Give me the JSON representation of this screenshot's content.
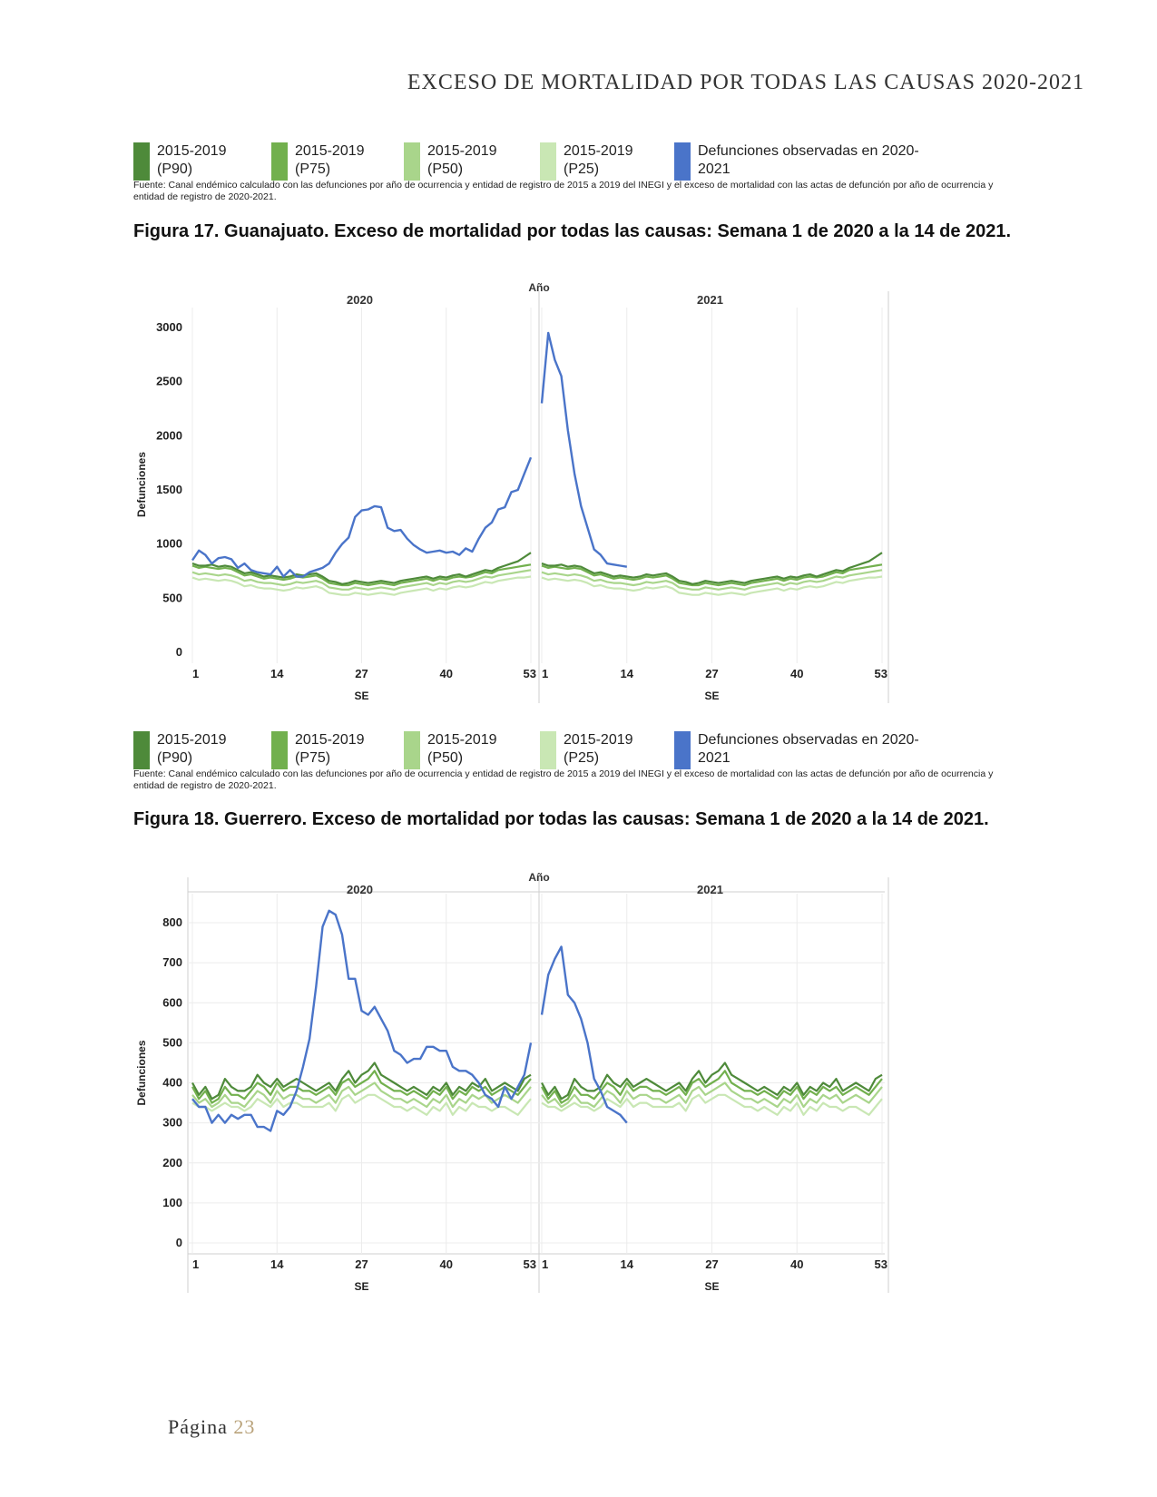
{
  "header": {
    "title": "EXCESO DE MORTALIDAD POR TODAS LAS CAUSAS 2020-2021"
  },
  "legend": {
    "items": [
      {
        "label": "2015-2019\n(P90)",
        "color": "#4e8a3a"
      },
      {
        "label": "2015-2019\n(P75)",
        "color": "#72b04e"
      },
      {
        "label": "2015-2019\n(P50)",
        "color": "#a9d58b"
      },
      {
        "label": "2015-2019\n(P25)",
        "color": "#c9e7b4"
      },
      {
        "label": "Defunciones observadas en 2020-\n2021",
        "color": "#4a74c9"
      }
    ]
  },
  "source_note": "Fuente: Canal endémico calculado con las defunciones por año de ocurrencia y entidad de registro de 2015 a 2019 del INEGI y el exceso de mortalidad con las actas de defunción por año de ocurrencia y entidad de registro de 2020-2021.",
  "figures": [
    {
      "title": "Figura 17. Guanajuato. Exceso de mortalidad por todas las causas: Semana 1 de 2020 a la 14 de 2021."
    },
    {
      "title": "Figura 18. Guerrero. Exceso de mortalidad por todas las causas: Semana 1 de 2020 a la 14 de 2021."
    }
  ],
  "footer": {
    "label": "Página",
    "page": "23"
  },
  "chart_data": [
    {
      "type": "line",
      "title": "Figura 17. Guanajuato. Exceso de mortalidad por todas las causas: Semana 1 de 2020 a la 14 de 2021.",
      "top_label": "Año",
      "panels": [
        "2020",
        "2021"
      ],
      "xlabel": "SE",
      "ylabel": "Defunciones",
      "yticks": [
        0,
        500,
        1000,
        1500,
        2000,
        2500,
        3000
      ],
      "ylim": [
        0,
        3100
      ],
      "xticks": [
        1,
        14,
        27,
        40,
        53
      ],
      "xlim": [
        1,
        53
      ],
      "grid": "vertical",
      "baseline_by_week": {
        "P90": [
          820,
          800,
          800,
          810,
          790,
          800,
          790,
          760,
          730,
          740,
          720,
          700,
          710,
          700,
          690,
          700,
          720,
          710,
          720,
          730,
          700,
          660,
          650,
          630,
          640,
          660,
          650,
          640,
          650,
          660,
          650,
          640,
          660,
          670,
          680,
          690,
          700,
          680,
          700,
          690,
          710,
          720,
          700,
          720,
          740,
          760,
          750,
          780,
          800,
          820,
          840,
          880,
          920
        ],
        "P75": [
          800,
          780,
          790,
          780,
          770,
          780,
          770,
          740,
          710,
          720,
          700,
          680,
          690,
          680,
          670,
          680,
          700,
          690,
          700,
          710,
          680,
          640,
          630,
          620,
          620,
          640,
          630,
          620,
          630,
          640,
          630,
          620,
          640,
          650,
          660,
          670,
          680,
          660,
          680,
          670,
          690,
          700,
          690,
          700,
          720,
          740,
          730,
          760,
          770,
          780,
          790,
          800,
          810
        ],
        "P50": [
          740,
          720,
          730,
          720,
          710,
          720,
          710,
          690,
          660,
          670,
          650,
          640,
          640,
          630,
          620,
          630,
          650,
          640,
          650,
          660,
          640,
          600,
          590,
          580,
          580,
          600,
          590,
          580,
          590,
          600,
          590,
          580,
          600,
          610,
          620,
          630,
          640,
          620,
          640,
          630,
          650,
          660,
          650,
          660,
          680,
          700,
          690,
          710,
          720,
          730,
          740,
          750,
          760
        ],
        "P25": [
          690,
          670,
          680,
          670,
          660,
          670,
          660,
          640,
          610,
          620,
          600,
          590,
          590,
          580,
          570,
          580,
          600,
          590,
          600,
          610,
          590,
          550,
          540,
          530,
          530,
          550,
          540,
          530,
          540,
          550,
          540,
          530,
          550,
          560,
          570,
          580,
          590,
          570,
          590,
          580,
          600,
          610,
          600,
          610,
          630,
          650,
          640,
          660,
          670,
          680,
          690,
          690,
          700
        ]
      },
      "observed": {
        "2020": [
          850,
          940,
          900,
          820,
          870,
          880,
          860,
          780,
          820,
          760,
          740,
          730,
          720,
          790,
          700,
          760,
          700,
          700,
          740,
          760,
          780,
          820,
          920,
          1000,
          1060,
          1250,
          1310,
          1320,
          1350,
          1340,
          1150,
          1120,
          1130,
          1050,
          990,
          950,
          920,
          930,
          940,
          920,
          930,
          900,
          960,
          930,
          1050,
          1150,
          1200,
          1320,
          1340,
          1480,
          1500,
          1650,
          1800
        ],
        "2021": [
          2300,
          2950,
          2700,
          2550,
          2050,
          1650,
          1350,
          1150,
          950,
          900,
          820,
          810,
          800,
          790
        ]
      }
    },
    {
      "type": "line",
      "title": "Figura 18. Guerrero. Exceso de mortalidad por todas las causas: Semana 1 de 2020 a la 14 de 2021.",
      "top_label": "Año",
      "panels": [
        "2020",
        "2021"
      ],
      "xlabel": "SE",
      "ylabel": "Defunciones",
      "yticks": [
        0,
        100,
        200,
        300,
        400,
        500,
        600,
        700,
        800
      ],
      "ylim": [
        0,
        850
      ],
      "xticks": [
        1,
        14,
        27,
        40,
        53
      ],
      "xlim": [
        1,
        53
      ],
      "grid": "both",
      "baseline_by_week": {
        "P90": [
          400,
          370,
          390,
          360,
          370,
          410,
          390,
          380,
          380,
          390,
          420,
          400,
          390,
          410,
          390,
          400,
          410,
          400,
          390,
          380,
          390,
          400,
          380,
          410,
          430,
          400,
          420,
          430,
          450,
          420,
          410,
          400,
          390,
          380,
          390,
          380,
          370,
          390,
          380,
          400,
          370,
          390,
          380,
          400,
          390,
          410,
          380,
          390,
          400,
          390,
          380,
          410,
          420
        ],
        "P75": [
          390,
          360,
          380,
          350,
          360,
          390,
          370,
          370,
          360,
          380,
          400,
          390,
          370,
          400,
          380,
          390,
          390,
          380,
          380,
          370,
          380,
          390,
          370,
          400,
          410,
          390,
          400,
          410,
          430,
          400,
          390,
          380,
          380,
          370,
          380,
          370,
          360,
          380,
          370,
          390,
          360,
          380,
          370,
          390,
          380,
          390,
          370,
          380,
          390,
          380,
          370,
          390,
          410
        ],
        "P50": [
          370,
          350,
          360,
          340,
          350,
          370,
          350,
          350,
          340,
          360,
          380,
          370,
          350,
          380,
          360,
          370,
          370,
          360,
          360,
          350,
          360,
          370,
          350,
          380,
          390,
          370,
          380,
          390,
          400,
          380,
          370,
          360,
          360,
          350,
          360,
          350,
          340,
          360,
          350,
          370,
          340,
          360,
          350,
          370,
          360,
          370,
          350,
          360,
          370,
          360,
          350,
          370,
          390
        ],
        "P25": [
          350,
          340,
          340,
          330,
          340,
          350,
          340,
          340,
          330,
          340,
          360,
          350,
          340,
          360,
          340,
          350,
          350,
          340,
          340,
          340,
          340,
          350,
          330,
          360,
          370,
          350,
          360,
          370,
          370,
          360,
          350,
          340,
          340,
          330,
          340,
          330,
          320,
          340,
          330,
          350,
          320,
          340,
          330,
          350,
          340,
          340,
          330,
          340,
          340,
          330,
          320,
          340,
          360
        ]
      },
      "observed": {
        "2020": [
          360,
          340,
          340,
          300,
          320,
          300,
          320,
          310,
          320,
          320,
          290,
          290,
          280,
          330,
          320,
          340,
          380,
          440,
          510,
          640,
          790,
          830,
          820,
          770,
          660,
          660,
          580,
          570,
          590,
          560,
          530,
          480,
          470,
          450,
          460,
          460,
          490,
          490,
          480,
          480,
          440,
          430,
          430,
          420,
          400,
          370,
          360,
          340,
          390,
          360,
          390,
          420,
          500
        ],
        "2021": [
          570,
          670,
          710,
          740,
          620,
          600,
          560,
          500,
          410,
          380,
          340,
          330,
          320,
          300
        ]
      }
    }
  ]
}
